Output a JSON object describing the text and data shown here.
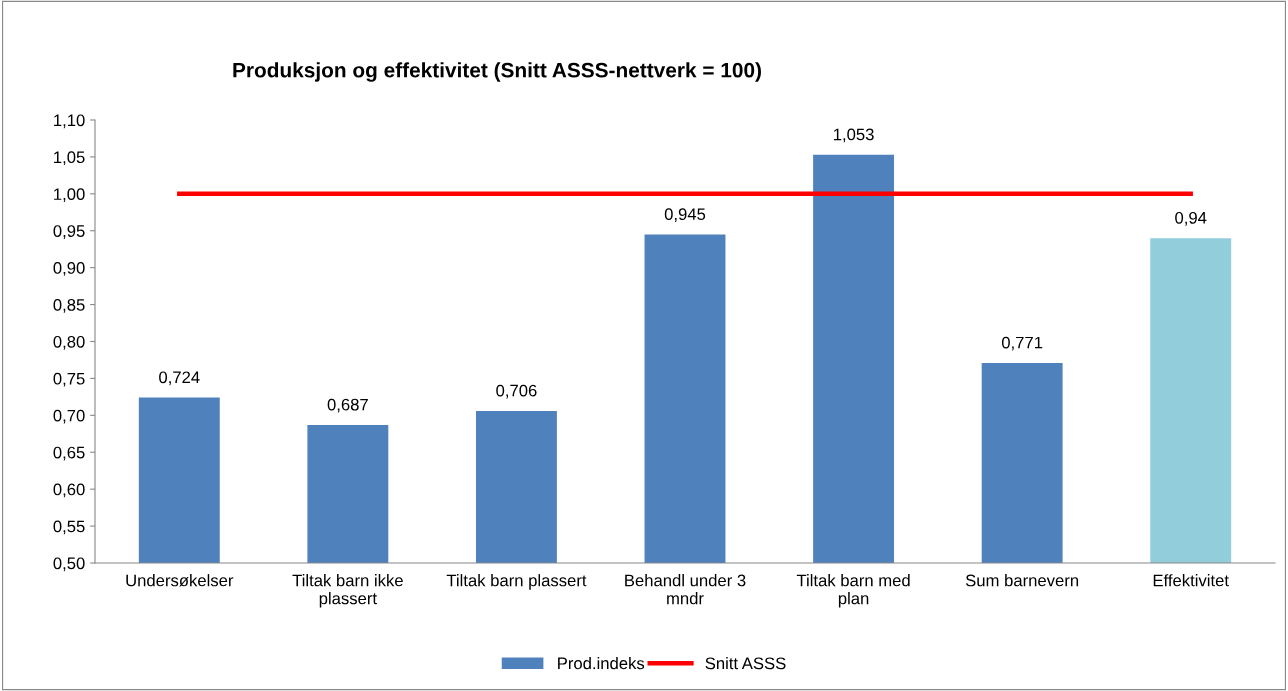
{
  "chart_data": {
    "type": "bar",
    "title": "Produksjon og effektivitet (Snitt ASSS-nettverk = 100)",
    "categories": [
      "Undersøkelser",
      "Tiltak barn ikke\nplassert",
      "Tiltak barn plassert",
      "Behandl under 3\nmndr",
      "Tiltak barn med\nplan",
      "Sum barnevern",
      "Effektivitet"
    ],
    "series": [
      {
        "name": "Prod.indeks",
        "color": "#4f81bd",
        "colors": [
          "#4f81bd",
          "#4f81bd",
          "#4f81bd",
          "#4f81bd",
          "#4f81bd",
          "#4f81bd",
          "#92cddc"
        ],
        "values": [
          0.724,
          0.687,
          0.706,
          0.945,
          1.053,
          0.771,
          0.94
        ],
        "value_labels": [
          "0,724",
          "0,687",
          "0,706",
          "0,945",
          "1,053",
          "0,771",
          "0,94"
        ]
      },
      {
        "name": "Snitt ASSS",
        "type": "line",
        "color": "#ff0000",
        "values": [
          1.0,
          1.0,
          1.0,
          1.0,
          1.0,
          1.0,
          1.0
        ]
      }
    ],
    "ylim": [
      0.5,
      1.1
    ],
    "yticks": [
      {
        "value": 0.5,
        "label": "0,50"
      },
      {
        "value": 0.55,
        "label": "0,55"
      },
      {
        "value": 0.6,
        "label": "0,60"
      },
      {
        "value": 0.65,
        "label": "0,65"
      },
      {
        "value": 0.7,
        "label": "0,70"
      },
      {
        "value": 0.75,
        "label": "0,75"
      },
      {
        "value": 0.8,
        "label": "0,80"
      },
      {
        "value": 0.85,
        "label": "0,85"
      },
      {
        "value": 0.9,
        "label": "0,90"
      },
      {
        "value": 0.95,
        "label": "0,95"
      },
      {
        "value": 1.0,
        "label": "1,00"
      },
      {
        "value": 1.05,
        "label": "1,05"
      },
      {
        "value": 1.1,
        "label": "1,10"
      }
    ],
    "grid": false,
    "legend": "bottom",
    "marker": "none",
    "line_style": "solid"
  }
}
